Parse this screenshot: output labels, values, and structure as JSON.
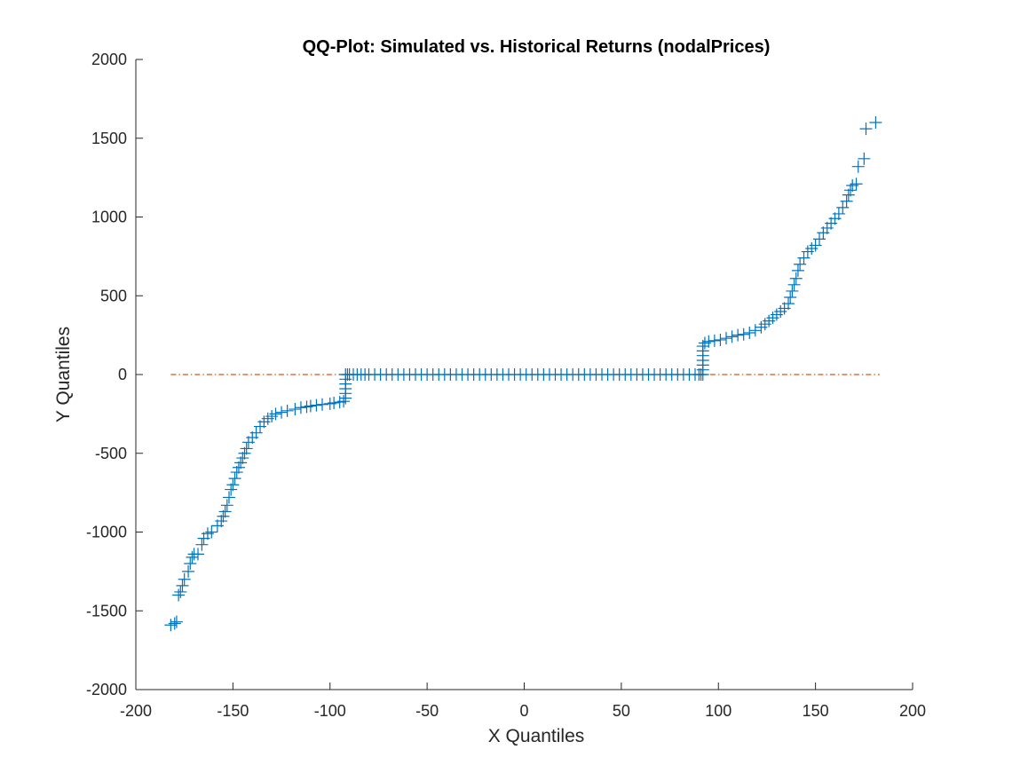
{
  "chart_data": {
    "type": "scatter",
    "title": "QQ-Plot: Simulated vs. Historical Returns (nodalPrices)",
    "xlabel": "X Quantiles",
    "ylabel": "Y Quantiles",
    "xlim": [
      -200,
      200
    ],
    "ylim": [
      -2000,
      2000
    ],
    "xticks": [
      -200,
      -150,
      -100,
      -50,
      0,
      50,
      100,
      150,
      200
    ],
    "yticks": [
      -2000,
      -1500,
      -1000,
      -500,
      0,
      500,
      1000,
      1500,
      2000
    ],
    "grid": false,
    "colors": {
      "points": "#0072BD",
      "reference_line": "#D95319",
      "axes": "#262626"
    },
    "marker": "+",
    "series": [
      {
        "values_xy": [
          [
            -182,
            -1590
          ],
          [
            -180,
            -1580
          ],
          [
            -179,
            -1570
          ],
          [
            -178,
            -1400
          ],
          [
            -177,
            -1380
          ],
          [
            -176,
            -1340
          ],
          [
            -175,
            -1300
          ],
          [
            -173,
            -1250
          ],
          [
            -172,
            -1200
          ],
          [
            -171,
            -1160
          ],
          [
            -170,
            -1140
          ],
          [
            -168,
            -1140
          ],
          [
            -166,
            -1080
          ],
          [
            -165,
            -1040
          ],
          [
            -163,
            -1010
          ],
          [
            -161,
            -1000
          ],
          [
            -158,
            -960
          ],
          [
            -156,
            -930
          ],
          [
            -155,
            -900
          ],
          [
            -154,
            -870
          ],
          [
            -153,
            -830
          ],
          [
            -152,
            -780
          ],
          [
            -151,
            -730
          ],
          [
            -150,
            -700
          ],
          [
            -149,
            -660
          ],
          [
            -148,
            -620
          ],
          [
            -147,
            -590
          ],
          [
            -146,
            -560
          ],
          [
            -145,
            -530
          ],
          [
            -144,
            -500
          ],
          [
            -143,
            -470
          ],
          [
            -142,
            -430
          ],
          [
            -140,
            -400
          ],
          [
            -138,
            -370
          ],
          [
            -136,
            -330
          ],
          [
            -134,
            -300
          ],
          [
            -132,
            -280
          ],
          [
            -130,
            -265
          ],
          [
            -128,
            -250
          ],
          [
            -125,
            -240
          ],
          [
            -122,
            -230
          ],
          [
            -118,
            -220
          ],
          [
            -115,
            -210
          ],
          [
            -112,
            -205
          ],
          [
            -110,
            -200
          ],
          [
            -107,
            -195
          ],
          [
            -104,
            -190
          ],
          [
            -100,
            -185
          ],
          [
            -98,
            -180
          ],
          [
            -95,
            -175
          ],
          [
            -93,
            -170
          ],
          [
            -92,
            -150
          ],
          [
            -92,
            -120
          ],
          [
            -92,
            -90
          ],
          [
            -92,
            -60
          ],
          [
            -92,
            -30
          ],
          [
            -92,
            0
          ],
          [
            -91,
            0
          ],
          [
            -90,
            0
          ],
          [
            -88,
            0
          ],
          [
            -86,
            0
          ],
          [
            -84,
            0
          ],
          [
            -82,
            0
          ],
          [
            -80,
            0
          ],
          [
            -77,
            0
          ],
          [
            -74,
            0
          ],
          [
            -71,
            0
          ],
          [
            -68,
            0
          ],
          [
            -65,
            0
          ],
          [
            -62,
            0
          ],
          [
            -59,
            0
          ],
          [
            -56,
            0
          ],
          [
            -53,
            0
          ],
          [
            -50,
            0
          ],
          [
            -47,
            0
          ],
          [
            -44,
            0
          ],
          [
            -41,
            0
          ],
          [
            -38,
            0
          ],
          [
            -35,
            0
          ],
          [
            -32,
            0
          ],
          [
            -29,
            0
          ],
          [
            -26,
            0
          ],
          [
            -23,
            0
          ],
          [
            -20,
            0
          ],
          [
            -17,
            0
          ],
          [
            -14,
            0
          ],
          [
            -11,
            0
          ],
          [
            -8,
            0
          ],
          [
            -5,
            0
          ],
          [
            -2,
            0
          ],
          [
            1,
            0
          ],
          [
            4,
            0
          ],
          [
            7,
            0
          ],
          [
            10,
            0
          ],
          [
            13,
            0
          ],
          [
            16,
            0
          ],
          [
            19,
            0
          ],
          [
            22,
            0
          ],
          [
            25,
            0
          ],
          [
            28,
            0
          ],
          [
            31,
            0
          ],
          [
            34,
            0
          ],
          [
            37,
            0
          ],
          [
            40,
            0
          ],
          [
            43,
            0
          ],
          [
            46,
            0
          ],
          [
            49,
            0
          ],
          [
            52,
            0
          ],
          [
            55,
            0
          ],
          [
            58,
            0
          ],
          [
            61,
            0
          ],
          [
            64,
            0
          ],
          [
            67,
            0
          ],
          [
            70,
            0
          ],
          [
            73,
            0
          ],
          [
            76,
            0
          ],
          [
            79,
            0
          ],
          [
            82,
            0
          ],
          [
            85,
            0
          ],
          [
            88,
            0
          ],
          [
            90,
            0
          ],
          [
            91,
            0
          ],
          [
            92,
            0
          ],
          [
            92,
            30
          ],
          [
            92,
            60
          ],
          [
            92,
            90
          ],
          [
            92,
            120
          ],
          [
            92,
            150
          ],
          [
            92,
            180
          ],
          [
            93,
            200
          ],
          [
            95,
            210
          ],
          [
            98,
            215
          ],
          [
            101,
            220
          ],
          [
            104,
            230
          ],
          [
            107,
            240
          ],
          [
            110,
            250
          ],
          [
            113,
            255
          ],
          [
            116,
            265
          ],
          [
            119,
            280
          ],
          [
            122,
            300
          ],
          [
            124,
            320
          ],
          [
            126,
            340
          ],
          [
            128,
            360
          ],
          [
            130,
            380
          ],
          [
            132,
            400
          ],
          [
            134,
            420
          ],
          [
            136,
            450
          ],
          [
            137,
            490
          ],
          [
            138,
            530
          ],
          [
            139,
            570
          ],
          [
            140,
            610
          ],
          [
            141,
            660
          ],
          [
            142,
            700
          ],
          [
            144,
            740
          ],
          [
            146,
            780
          ],
          [
            148,
            800
          ],
          [
            150,
            820
          ],
          [
            152,
            860
          ],
          [
            154,
            900
          ],
          [
            156,
            930
          ],
          [
            158,
            960
          ],
          [
            160,
            990
          ],
          [
            162,
            1020
          ],
          [
            164,
            1060
          ],
          [
            166,
            1100
          ],
          [
            167,
            1140
          ],
          [
            168,
            1170
          ],
          [
            169,
            1200
          ],
          [
            171,
            1210
          ],
          [
            172,
            1320
          ],
          [
            175,
            1370
          ],
          [
            176,
            1560
          ],
          [
            181,
            1600
          ]
        ]
      },
      {
        "line_xy": [
          [
            -182,
            0
          ],
          [
            183,
            0
          ]
        ]
      }
    ]
  }
}
